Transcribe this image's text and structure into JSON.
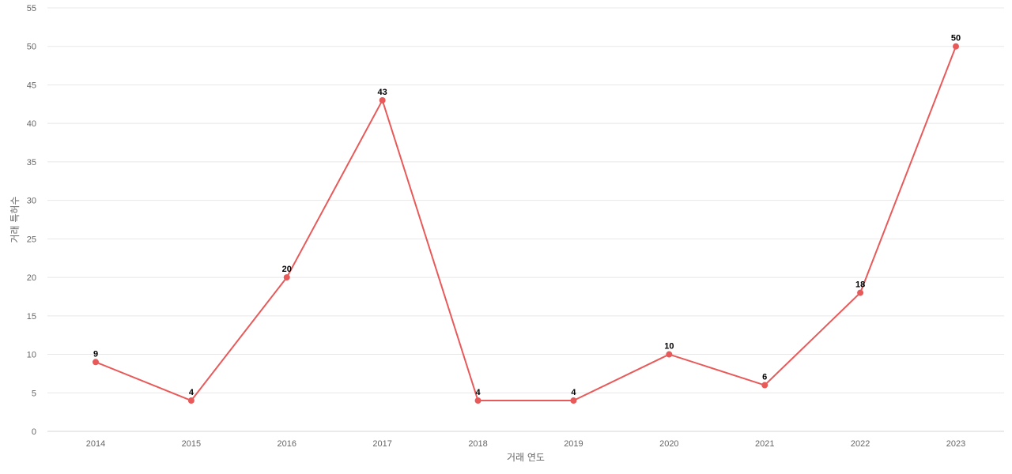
{
  "chart_data": {
    "type": "line",
    "title": "",
    "xlabel": "거래 연도",
    "ylabel": "거래 특허수",
    "x": [
      "2014",
      "2015",
      "2016",
      "2017",
      "2018",
      "2019",
      "2020",
      "2021",
      "2022",
      "2023"
    ],
    "series": [
      {
        "values": [
          9,
          4,
          20,
          43,
          4,
          4,
          10,
          6,
          18,
          50
        ],
        "color": "#e85a5a"
      }
    ],
    "ylim": [
      0,
      55
    ],
    "yticks": [
      0,
      5,
      10,
      15,
      20,
      25,
      30,
      35,
      40,
      45,
      50,
      55
    ],
    "grid": true,
    "legend": "none",
    "data_labels": true
  }
}
